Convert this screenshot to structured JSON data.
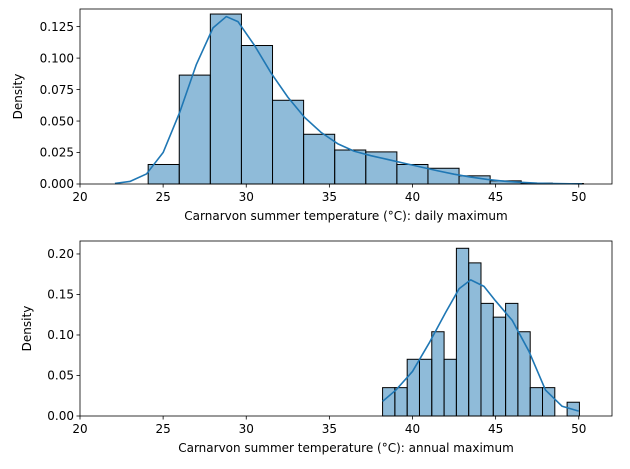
{
  "chart_data": [
    {
      "type": "bar",
      "subtype": "histogram-with-kde",
      "xlabel": "Carnarvon summer temperature (°C): daily maximum",
      "ylabel": "Density",
      "xlim": [
        20,
        52
      ],
      "ylim": [
        0,
        0.139
      ],
      "xticks": [
        20,
        25,
        30,
        35,
        40,
        45,
        50
      ],
      "xtick_labels": [
        "20",
        "25",
        "30",
        "35",
        "40",
        "45",
        "50"
      ],
      "yticks": [
        0.0,
        0.025,
        0.05,
        0.075,
        0.1,
        0.125
      ],
      "ytick_labels": [
        "0.000",
        "0.025",
        "0.050",
        "0.075",
        "0.100",
        "0.125"
      ],
      "grid": false,
      "bar_color": "#1f77b4",
      "kde_color": "#1f77b4",
      "bins": [
        {
          "x0": 24.1,
          "x1": 25.97,
          "density": 0.0155
        },
        {
          "x0": 25.97,
          "x1": 27.84,
          "density": 0.0865
        },
        {
          "x0": 27.84,
          "x1": 29.71,
          "density": 0.135
        },
        {
          "x0": 29.71,
          "x1": 31.58,
          "density": 0.11
        },
        {
          "x0": 31.58,
          "x1": 33.45,
          "density": 0.0665
        },
        {
          "x0": 33.45,
          "x1": 35.32,
          "density": 0.0395
        },
        {
          "x0": 35.32,
          "x1": 37.19,
          "density": 0.027
        },
        {
          "x0": 37.19,
          "x1": 39.06,
          "density": 0.0255
        },
        {
          "x0": 39.06,
          "x1": 40.93,
          "density": 0.0155
        },
        {
          "x0": 40.93,
          "x1": 42.8,
          "density": 0.0125
        },
        {
          "x0": 42.8,
          "x1": 44.67,
          "density": 0.0065
        },
        {
          "x0": 44.67,
          "x1": 46.54,
          "density": 0.0025
        },
        {
          "x0": 46.54,
          "x1": 48.41,
          "density": 0.0007
        },
        {
          "x0": 48.41,
          "x1": 50.28,
          "density": 0.0004
        }
      ],
      "kde": {
        "x": [
          22.1,
          23,
          24,
          25,
          26,
          27,
          28,
          28.8,
          29.5,
          30.5,
          31.5,
          32.5,
          33.5,
          34.5,
          35.5,
          36.5,
          37.5,
          38.5,
          39.5,
          40.5,
          41.5,
          42.5,
          43.5,
          44.5,
          45.5,
          46.5,
          47.5,
          48.5,
          49.5,
          50.2
        ],
        "y": [
          0.0005,
          0.002,
          0.008,
          0.025,
          0.057,
          0.095,
          0.124,
          0.133,
          0.129,
          0.11,
          0.088,
          0.069,
          0.053,
          0.041,
          0.032,
          0.026,
          0.0225,
          0.0195,
          0.0165,
          0.0135,
          0.0105,
          0.0078,
          0.0055,
          0.0036,
          0.0022,
          0.0013,
          0.0007,
          0.0004,
          0.0002,
          0.0001
        ]
      }
    },
    {
      "type": "bar",
      "subtype": "histogram-with-kde",
      "xlabel": "Carnarvon summer temperature (°C): annual maximum",
      "ylabel": "Density",
      "xlim": [
        20,
        52
      ],
      "ylim": [
        0,
        0.216
      ],
      "xticks": [
        20,
        25,
        30,
        35,
        40,
        45,
        50
      ],
      "xtick_labels": [
        "20",
        "25",
        "30",
        "35",
        "40",
        "45",
        "50"
      ],
      "yticks": [
        0.0,
        0.05,
        0.1,
        0.15,
        0.2
      ],
      "ytick_labels": [
        "0.00",
        "0.05",
        "0.10",
        "0.15",
        "0.20"
      ],
      "grid": false,
      "bar_color": "#1f77b4",
      "kde_color": "#1f77b4",
      "bins": [
        {
          "x0": 38.2,
          "x1": 38.94,
          "density": 0.035
        },
        {
          "x0": 38.94,
          "x1": 39.68,
          "density": 0.035
        },
        {
          "x0": 39.68,
          "x1": 40.42,
          "density": 0.07
        },
        {
          "x0": 40.42,
          "x1": 41.16,
          "density": 0.07
        },
        {
          "x0": 41.16,
          "x1": 41.9,
          "density": 0.104
        },
        {
          "x0": 41.9,
          "x1": 42.64,
          "density": 0.07
        },
        {
          "x0": 42.64,
          "x1": 43.38,
          "density": 0.207
        },
        {
          "x0": 43.38,
          "x1": 44.12,
          "density": 0.189
        },
        {
          "x0": 44.12,
          "x1": 44.86,
          "density": 0.139
        },
        {
          "x0": 44.86,
          "x1": 45.6,
          "density": 0.122
        },
        {
          "x0": 45.6,
          "x1": 46.34,
          "density": 0.139
        },
        {
          "x0": 46.34,
          "x1": 47.08,
          "density": 0.104
        },
        {
          "x0": 47.08,
          "x1": 47.82,
          "density": 0.035
        },
        {
          "x0": 47.82,
          "x1": 48.56,
          "density": 0.035
        },
        {
          "x0": 48.56,
          "x1": 49.3,
          "density": 0.0
        },
        {
          "x0": 49.3,
          "x1": 50.04,
          "density": 0.017
        }
      ],
      "kde": {
        "x": [
          38.2,
          39,
          40,
          41,
          42,
          42.8,
          43.5,
          44.3,
          45,
          46,
          47,
          48,
          49,
          50
        ],
        "y": [
          0.018,
          0.032,
          0.055,
          0.09,
          0.128,
          0.157,
          0.168,
          0.16,
          0.142,
          0.118,
          0.08,
          0.032,
          0.012,
          0.006
        ]
      }
    }
  ]
}
